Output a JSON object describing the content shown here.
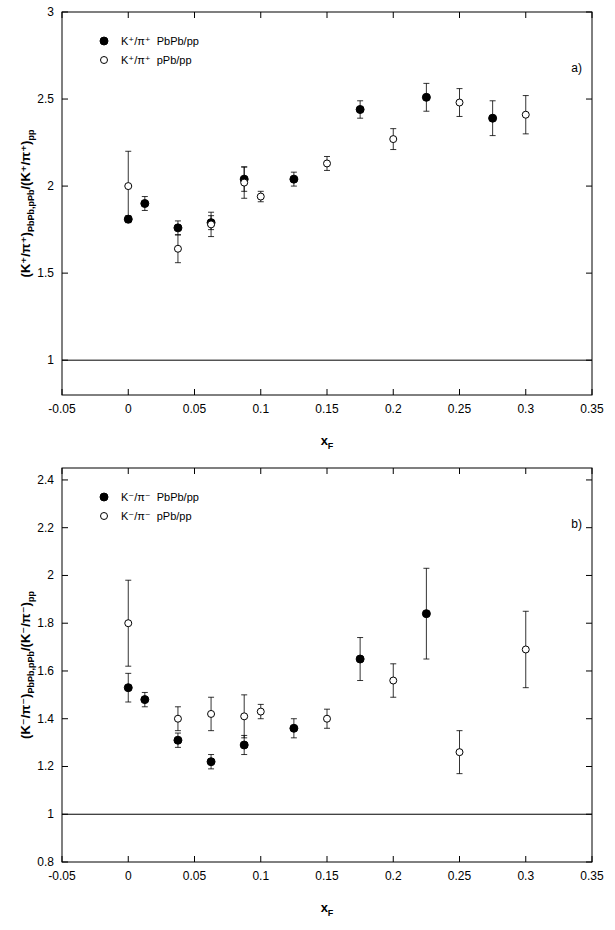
{
  "chart_data": [
    {
      "type": "scatter",
      "panel_label": "a)",
      "x_label": [
        "x",
        "F"
      ],
      "y_label": [
        "(K⁺/π⁺)",
        "PbPb,pPb",
        "/(K⁺/π⁺)",
        "pp"
      ],
      "xlim": [
        -0.05,
        0.35
      ],
      "xticks": [
        -0.05,
        0,
        0.05,
        0.1,
        0.15,
        0.2,
        0.25,
        0.3,
        0.35
      ],
      "ylim": [
        0.8,
        3
      ],
      "yticks": [
        1,
        1.5,
        2,
        2.5,
        3
      ],
      "reference_line": 1,
      "legend": "upper-left",
      "series": [
        {
          "name": "K⁺/π⁺  PbPb/pp",
          "color": "#000000",
          "marker": "filled-circle",
          "x": [
            0,
            0.0125,
            0.0375,
            0.0625,
            0.0875,
            0.125,
            0.175,
            0.225,
            0.275
          ],
          "values": [
            1.81,
            1.9,
            1.76,
            1.79,
            2.04,
            2.04,
            2.44,
            2.51,
            2.39
          ],
          "errors": [
            0.02,
            0.04,
            0.04,
            0.04,
            0.07,
            0.04,
            0.05,
            0.08,
            0.1
          ]
        },
        {
          "name": "K⁺/π⁺  pPb/pp",
          "color": "#000000",
          "marker": "open-circle",
          "x": [
            0,
            0.0375,
            0.0625,
            0.0875,
            0.1,
            0.15,
            0.2,
            0.25,
            0.3
          ],
          "values": [
            2.0,
            1.64,
            1.78,
            2.02,
            1.94,
            2.13,
            2.27,
            2.48,
            2.41
          ],
          "errors": [
            0.2,
            0.08,
            0.07,
            0.09,
            0.03,
            0.04,
            0.06,
            0.08,
            0.11
          ]
        }
      ]
    },
    {
      "type": "scatter",
      "panel_label": "b)",
      "x_label": [
        "x",
        "F"
      ],
      "y_label": [
        "(K⁻/π⁻)",
        "PbPb,pPb",
        "/(K⁻/π⁻)",
        "pp"
      ],
      "xlim": [
        -0.05,
        0.35
      ],
      "xticks": [
        -0.05,
        0,
        0.05,
        0.1,
        0.15,
        0.2,
        0.25,
        0.3,
        0.35
      ],
      "ylim": [
        0.8,
        2.45
      ],
      "yticks": [
        0.8,
        1,
        1.2,
        1.4,
        1.6,
        1.8,
        2,
        2.2,
        2.4
      ],
      "reference_line": 1,
      "legend": "upper-left",
      "series": [
        {
          "name": "K⁻/π⁻  PbPb/pp",
          "color": "#000000",
          "marker": "filled-circle",
          "x": [
            0,
            0.0125,
            0.0375,
            0.0625,
            0.0875,
            0.125,
            0.175,
            0.225
          ],
          "values": [
            1.53,
            1.48,
            1.31,
            1.22,
            1.29,
            1.36,
            1.65,
            1.84
          ],
          "errors": [
            0.06,
            0.03,
            0.03,
            0.03,
            0.04,
            0.04,
            0.09,
            0.19
          ]
        },
        {
          "name": "K⁻/π⁻  pPb/pp",
          "color": "#000000",
          "marker": "open-circle",
          "x": [
            0,
            0.0375,
            0.0625,
            0.0875,
            0.1,
            0.15,
            0.2,
            0.25,
            0.3
          ],
          "values": [
            1.8,
            1.4,
            1.42,
            1.41,
            1.43,
            1.4,
            1.56,
            1.26,
            1.69
          ],
          "errors": [
            0.18,
            0.05,
            0.07,
            0.09,
            0.03,
            0.04,
            0.07,
            0.09,
            0.16
          ]
        }
      ]
    }
  ]
}
